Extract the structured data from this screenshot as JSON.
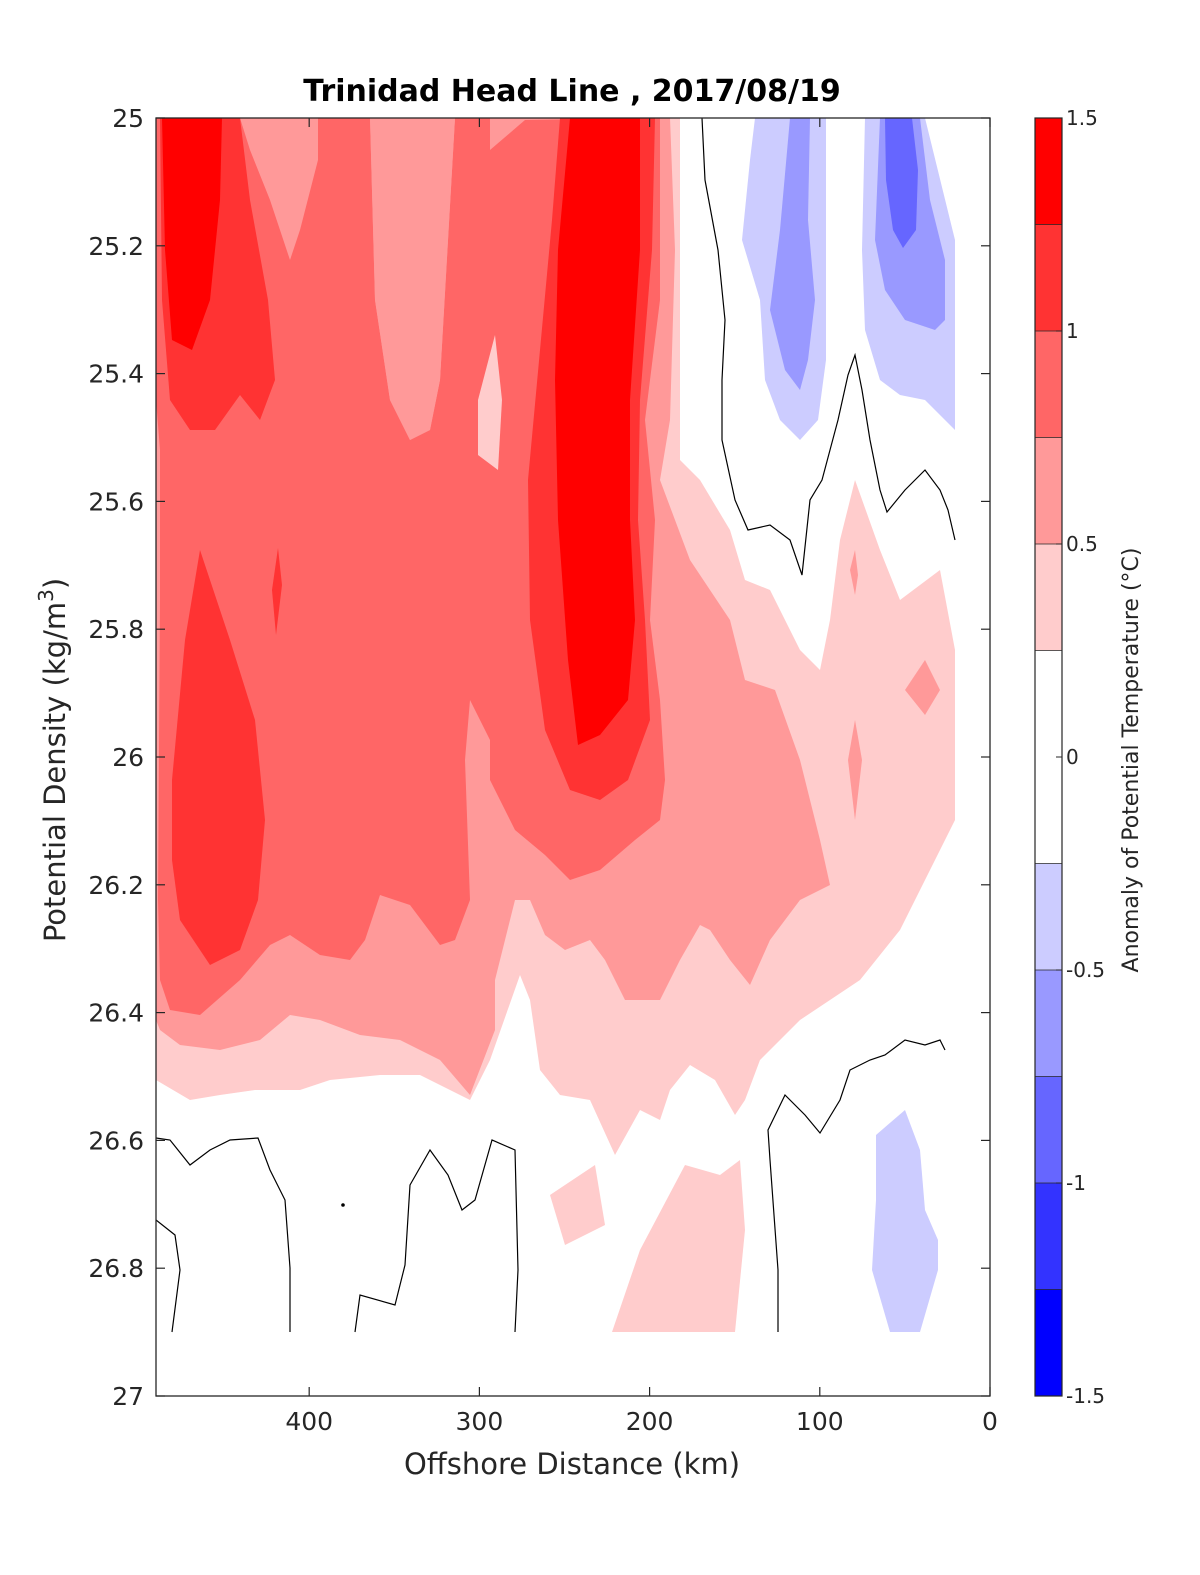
{
  "chart_data": {
    "type": "heatmap",
    "subtype": "filled-contour",
    "title": "Trinidad Head Line , 2017/08/19",
    "xlabel": "Offshore Distance (km)",
    "ylabel_prefix": "Potential Density (kg/m",
    "ylabel_sup": "3",
    "ylabel_suffix": ")",
    "xlim": [
      490,
      0
    ],
    "x_reversed": true,
    "ylim": [
      25,
      27
    ],
    "y_reversed": true,
    "x_ticks": [
      400,
      300,
      200,
      100,
      0
    ],
    "y_ticks": [
      25,
      25.2,
      25.4,
      25.6,
      25.8,
      26,
      26.2,
      26.4,
      26.6,
      26.8,
      27
    ],
    "colorbar": {
      "label": "Anomaly of Potential Temperature (°C)",
      "position": "right",
      "ticks": [
        1.5,
        1,
        0.5,
        0,
        -0.5,
        -1,
        -1.5
      ],
      "levels": [
        {
          "min": 1.25,
          "max": 1.5,
          "color": "#ff0000"
        },
        {
          "min": 1.0,
          "max": 1.25,
          "color": "#ff3333"
        },
        {
          "min": 0.75,
          "max": 1.0,
          "color": "#ff6666"
        },
        {
          "min": 0.5,
          "max": 0.75,
          "color": "#ff9999"
        },
        {
          "min": 0.25,
          "max": 0.5,
          "color": "#ffcccc"
        },
        {
          "min": -0.25,
          "max": 0.25,
          "color": "#ffffff"
        },
        {
          "min": -0.5,
          "max": -0.25,
          "color": "#ccccff"
        },
        {
          "min": -0.75,
          "max": -0.5,
          "color": "#9999ff"
        },
        {
          "min": -1.0,
          "max": -0.75,
          "color": "#6666ff"
        },
        {
          "min": -1.25,
          "max": -1.0,
          "color": "#3333ff"
        },
        {
          "min": -1.5,
          "max": -1.25,
          "color": "#0000ff"
        }
      ]
    },
    "zero_contour": "black line",
    "grid": false,
    "summary": [
      {
        "region": "x 490-410 km, density 25.0-25.35",
        "anomaly": ">1.25"
      },
      {
        "region": "x 470-430 km, density 25.7-26.3",
        "anomaly": "1.0-1.25"
      },
      {
        "region": "x 260-210 km, density 25.0-25.95",
        "anomaly": ">1.25"
      },
      {
        "region": "x 120-100 km, density 25.0-25.4",
        "anomaly": "-0.5 to -0.75"
      },
      {
        "region": "x 60-40 km, density 25.0-25.2",
        "anomaly": "-0.75 to -1.0"
      },
      {
        "region": "x 70-30 km, density 26.6-26.9",
        "anomaly": "-0.25 to -0.5"
      }
    ]
  }
}
